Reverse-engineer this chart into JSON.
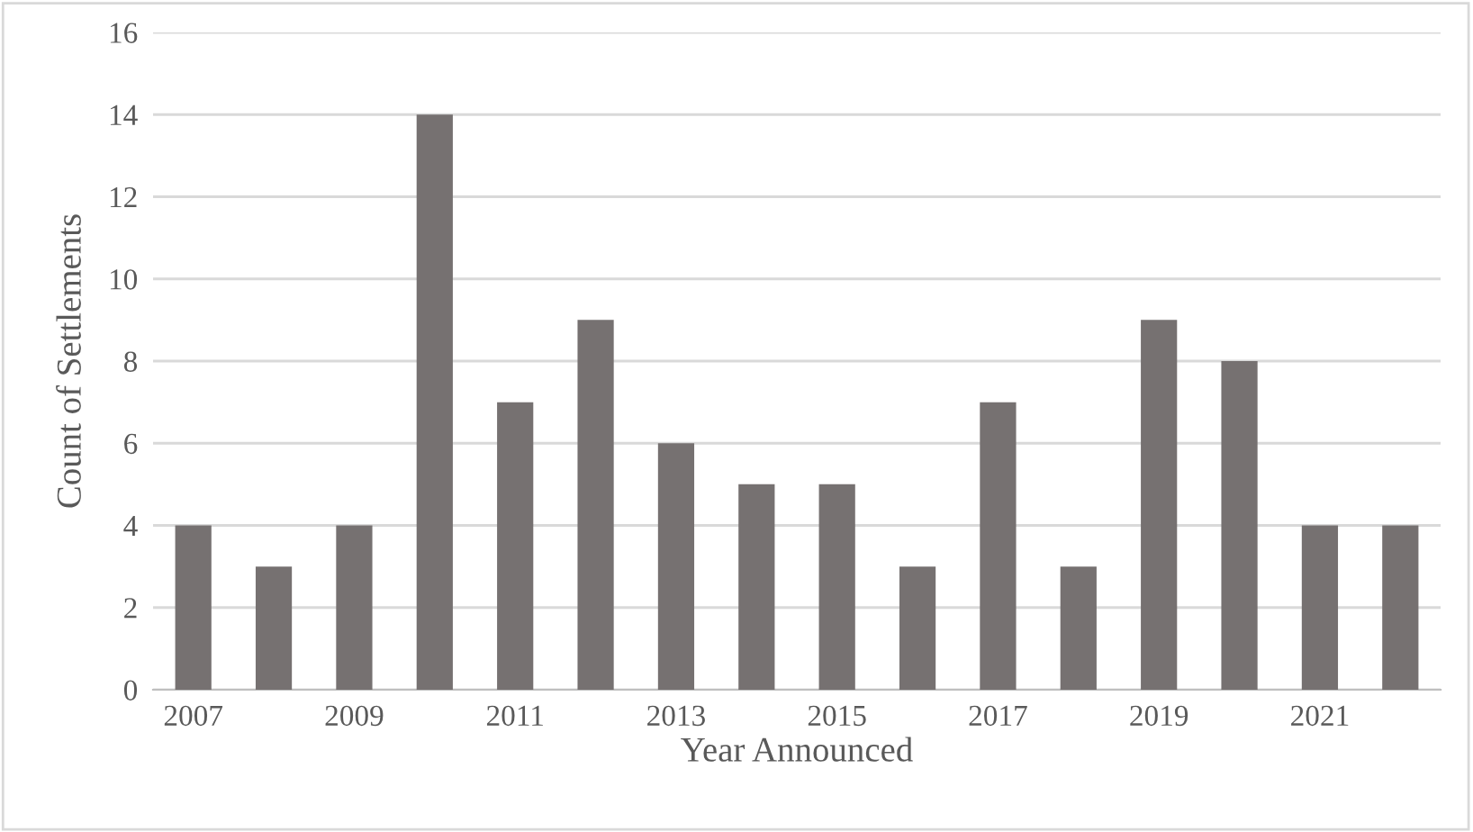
{
  "chart_data": {
    "type": "bar",
    "xlabel": "Year Announced",
    "ylabel": "Count of Settlements",
    "categories": [
      "2007",
      null,
      "2009",
      null,
      "2011",
      null,
      "2013",
      null,
      "2015",
      null,
      "2017",
      null,
      "2019",
      null,
      "2021",
      null
    ],
    "values": [
      4,
      3,
      4,
      14,
      7,
      9,
      6,
      5,
      5,
      3,
      7,
      3,
      9,
      8,
      4,
      4
    ],
    "color": "#767171",
    "ylim": [
      0,
      16
    ],
    "yticks": [
      0,
      2,
      4,
      6,
      8,
      10,
      12,
      14,
      16
    ],
    "grid": "y"
  }
}
